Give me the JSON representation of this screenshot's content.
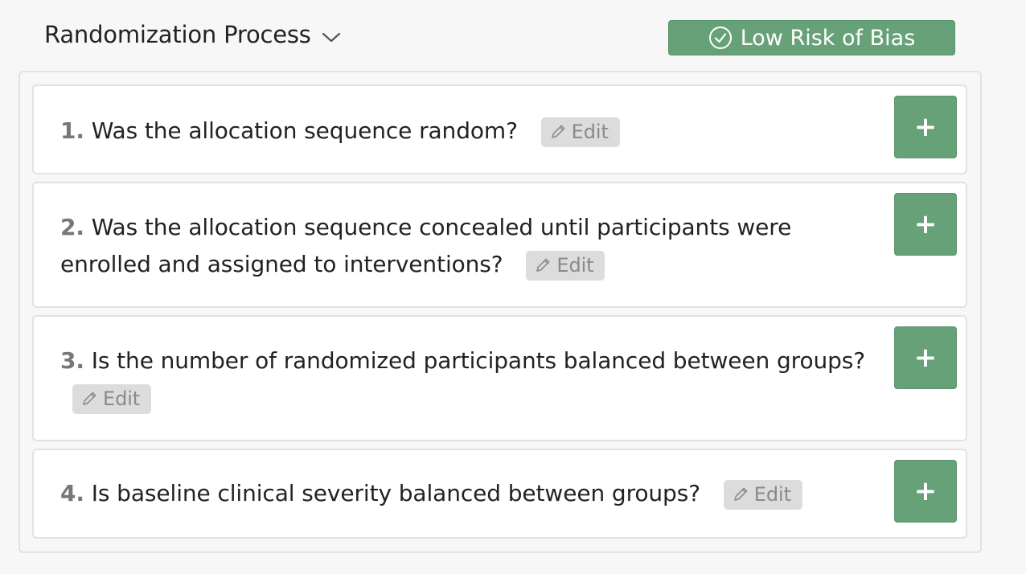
{
  "section": {
    "title": "Randomization Process",
    "badge_label": "Low Risk of Bias",
    "badge_color": "#66a178"
  },
  "questions": [
    {
      "number": "1.",
      "text": "Was the allocation sequence random?",
      "edit_label": "Edit",
      "add_label": "+"
    },
    {
      "number": "2.",
      "text_line1": "Was the allocation sequence concealed until participants were",
      "text_line2": "enrolled and assigned to interventions?",
      "edit_label": "Edit",
      "add_label": "+"
    },
    {
      "number": "3.",
      "text": "Is the number of randomized participants balanced between groups?",
      "edit_label": "Edit",
      "add_label": "+"
    },
    {
      "number": "4.",
      "text": "Is baseline clinical severity balanced between groups?",
      "edit_label": "Edit",
      "add_label": "+"
    }
  ],
  "icons": {
    "chevron": "chevron-down-icon",
    "check": "check-circle-icon",
    "pencil": "pencil-icon",
    "plus": "plus-icon"
  }
}
